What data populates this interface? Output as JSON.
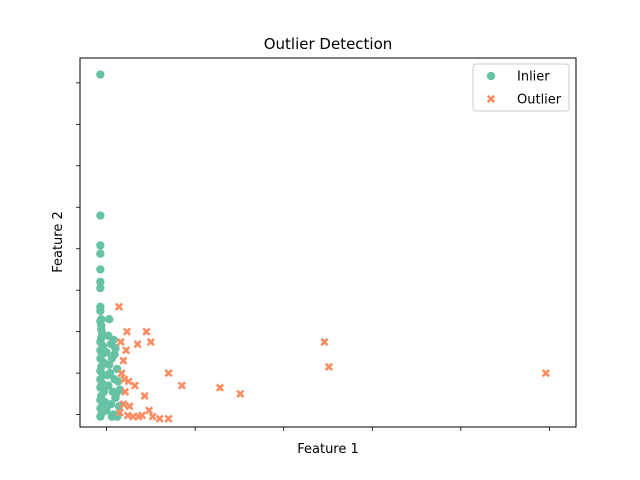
{
  "chart_data": {
    "type": "scatter",
    "title": "Outlier Detection",
    "xlabel": "Feature 1",
    "ylabel": "Feature 2",
    "xlim": [
      -0.3,
      5.3
    ],
    "ylim": [
      -0.3,
      8.6
    ],
    "x_ticks": [
      0,
      1,
      2,
      3,
      4,
      5
    ],
    "y_ticks": [
      0,
      1,
      2,
      3,
      4,
      5,
      6,
      7,
      8
    ],
    "show_tick_labels": false,
    "grid": false,
    "legend": {
      "position": "top-right"
    },
    "series": [
      {
        "name": "Inlier",
        "marker": "circle",
        "color": "#66c2a5",
        "points": [
          [
            -0.07,
            8.2
          ],
          [
            -0.07,
            4.8
          ],
          [
            -0.07,
            4.08
          ],
          [
            -0.07,
            3.88
          ],
          [
            -0.07,
            3.5
          ],
          [
            -0.07,
            3.2
          ],
          [
            -0.07,
            3.05
          ],
          [
            -0.07,
            2.6
          ],
          [
            -0.07,
            2.5
          ],
          [
            -0.06,
            2.3
          ],
          [
            -0.07,
            2.25
          ],
          [
            -0.06,
            2.15
          ],
          [
            -0.06,
            2.05
          ],
          [
            -0.05,
            1.95
          ],
          [
            -0.06,
            1.85
          ],
          [
            0.03,
            2.3
          ],
          [
            -0.07,
            1.75
          ],
          [
            -0.04,
            1.65
          ],
          [
            -0.07,
            1.55
          ],
          [
            -0.05,
            1.45
          ],
          [
            -0.07,
            1.35
          ],
          [
            -0.03,
            1.25
          ],
          [
            -0.06,
            1.15
          ],
          [
            -0.07,
            1.05
          ],
          [
            -0.04,
            0.95
          ],
          [
            -0.07,
            0.85
          ],
          [
            -0.05,
            0.75
          ],
          [
            -0.07,
            0.65
          ],
          [
            -0.03,
            0.55
          ],
          [
            -0.06,
            0.45
          ],
          [
            -0.07,
            0.35
          ],
          [
            -0.04,
            0.25
          ],
          [
            -0.07,
            0.15
          ],
          [
            -0.05,
            0.05
          ],
          [
            -0.07,
            -0.05
          ],
          [
            0.02,
            1.9
          ],
          [
            0.05,
            1.7
          ],
          [
            0.0,
            1.5
          ],
          [
            0.06,
            1.35
          ],
          [
            0.03,
            1.2
          ],
          [
            0.08,
            1.8
          ],
          [
            0.1,
            1.6
          ],
          [
            0.04,
            1.0
          ],
          [
            0.09,
            0.85
          ],
          [
            0.02,
            0.7
          ],
          [
            0.07,
            0.55
          ],
          [
            0.1,
            0.4
          ],
          [
            0.05,
            0.25
          ],
          [
            0.0,
            0.1
          ],
          [
            0.08,
            0.0
          ],
          [
            0.12,
            1.1
          ],
          [
            0.13,
            0.8
          ],
          [
            0.11,
            0.5
          ],
          [
            0.14,
            0.2
          ],
          [
            0.12,
            -0.05
          ],
          [
            0.06,
            -0.05
          ],
          [
            0.15,
            0.6
          ],
          [
            0.09,
            1.45
          ],
          [
            0.01,
            0.95
          ],
          [
            -0.02,
            0.3
          ]
        ]
      },
      {
        "name": "Outlier",
        "marker": "x",
        "color": "#fc8d62",
        "points": [
          [
            0.14,
            2.6
          ],
          [
            0.23,
            2.0
          ],
          [
            0.45,
            2.0
          ],
          [
            0.16,
            1.75
          ],
          [
            0.22,
            1.55
          ],
          [
            0.35,
            1.7
          ],
          [
            0.5,
            1.75
          ],
          [
            0.19,
            1.3
          ],
          [
            0.17,
            1.0
          ],
          [
            0.2,
            0.85
          ],
          [
            0.25,
            0.8
          ],
          [
            0.32,
            0.7
          ],
          [
            0.21,
            0.55
          ],
          [
            0.19,
            0.25
          ],
          [
            0.26,
            0.2
          ],
          [
            0.3,
            -0.05
          ],
          [
            0.36,
            -0.05
          ],
          [
            0.43,
            0.45
          ],
          [
            0.48,
            0.1
          ],
          [
            0.52,
            -0.05
          ],
          [
            0.6,
            -0.1
          ],
          [
            0.7,
            -0.1
          ],
          [
            0.7,
            1.0
          ],
          [
            0.85,
            0.7
          ],
          [
            1.28,
            0.65
          ],
          [
            1.51,
            0.5
          ],
          [
            2.46,
            1.75
          ],
          [
            2.51,
            1.15
          ],
          [
            4.96,
            1.0
          ],
          [
            0.15,
            0.05
          ],
          [
            0.24,
            -0.02
          ],
          [
            0.4,
            -0.02
          ]
        ]
      }
    ]
  }
}
